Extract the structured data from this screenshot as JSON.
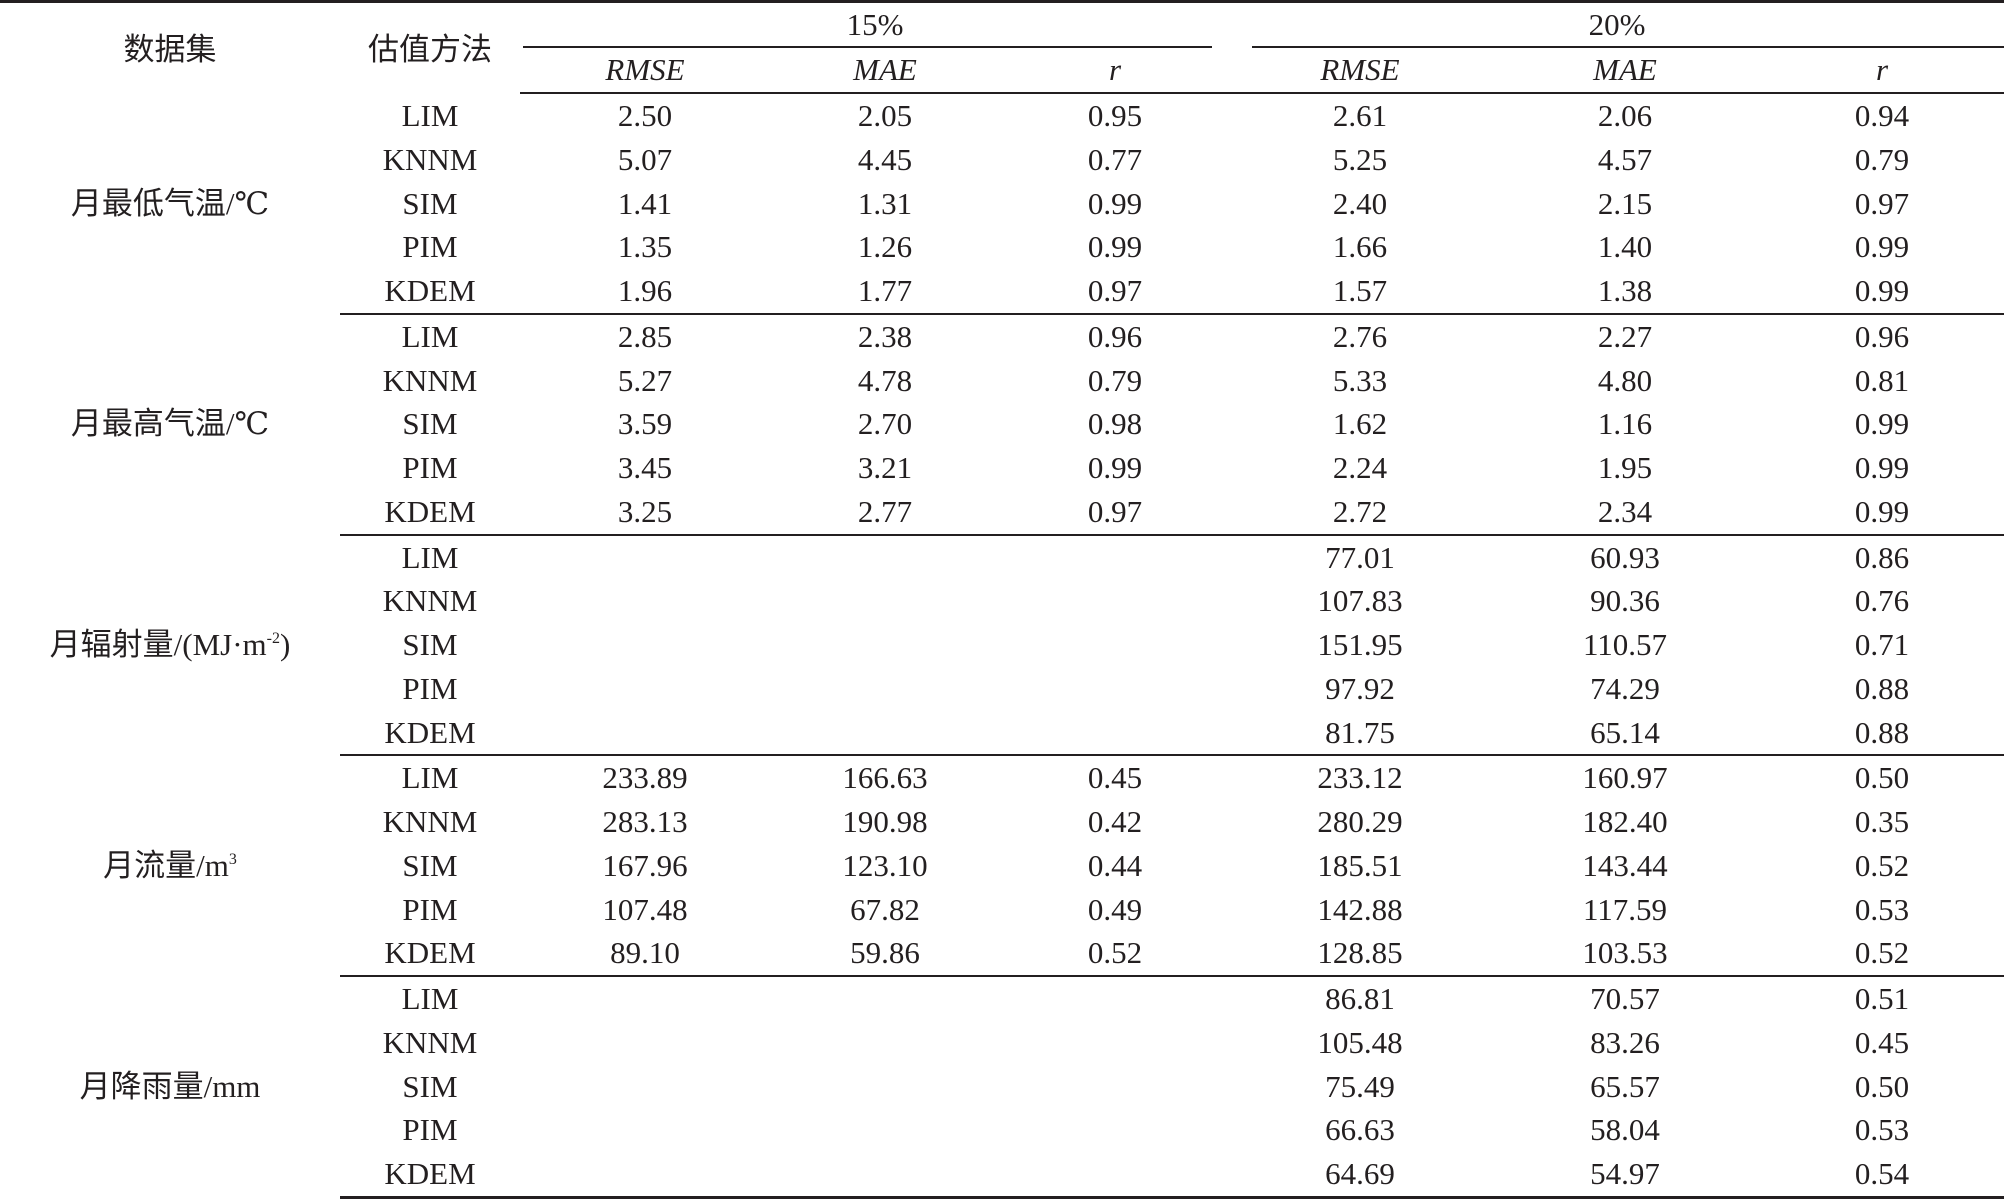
{
  "header": {
    "dataset": "数据集",
    "method": "估值方法",
    "groups": [
      "15%",
      "20%"
    ],
    "metrics": [
      "RMSE",
      "MAE",
      "r"
    ]
  },
  "datasets": [
    {
      "name": "月最低气温/℃",
      "rows": [
        {
          "method": "LIM",
          "v15": [
            "2.50",
            "2.05",
            "0.95"
          ],
          "v20": [
            "2.61",
            "2.06",
            "0.94"
          ]
        },
        {
          "method": "KNNM",
          "v15": [
            "5.07",
            "4.45",
            "0.77"
          ],
          "v20": [
            "5.25",
            "4.57",
            "0.79"
          ]
        },
        {
          "method": "SIM",
          "v15": [
            "1.41",
            "1.31",
            "0.99"
          ],
          "v20": [
            "2.40",
            "2.15",
            "0.97"
          ]
        },
        {
          "method": "PIM",
          "v15": [
            "1.35",
            "1.26",
            "0.99"
          ],
          "v20": [
            "1.66",
            "1.40",
            "0.99"
          ]
        },
        {
          "method": "KDEM",
          "v15": [
            "1.96",
            "1.77",
            "0.97"
          ],
          "v20": [
            "1.57",
            "1.38",
            "0.99"
          ]
        }
      ]
    },
    {
      "name": "月最高气温/℃",
      "rows": [
        {
          "method": "LIM",
          "v15": [
            "2.85",
            "2.38",
            "0.96"
          ],
          "v20": [
            "2.76",
            "2.27",
            "0.96"
          ]
        },
        {
          "method": "KNNM",
          "v15": [
            "5.27",
            "4.78",
            "0.79"
          ],
          "v20": [
            "5.33",
            "4.80",
            "0.81"
          ]
        },
        {
          "method": "SIM",
          "v15": [
            "3.59",
            "2.70",
            "0.98"
          ],
          "v20": [
            "1.62",
            "1.16",
            "0.99"
          ]
        },
        {
          "method": "PIM",
          "v15": [
            "3.45",
            "3.21",
            "0.99"
          ],
          "v20": [
            "2.24",
            "1.95",
            "0.99"
          ]
        },
        {
          "method": "KDEM",
          "v15": [
            "3.25",
            "2.77",
            "0.97"
          ],
          "v20": [
            "2.72",
            "2.34",
            "0.99"
          ]
        }
      ]
    },
    {
      "name": "月辐射量/(MJ·m",
      "name_sup": "-2",
      "name_tail": ")",
      "rows": [
        {
          "method": "LIM",
          "v15": [
            "",
            "",
            ""
          ],
          "v20": [
            "77.01",
            "60.93",
            "0.86"
          ]
        },
        {
          "method": "KNNM",
          "v15": [
            "",
            "",
            ""
          ],
          "v20": [
            "107.83",
            "90.36",
            "0.76"
          ]
        },
        {
          "method": "SIM",
          "v15": [
            "",
            "",
            ""
          ],
          "v20": [
            "151.95",
            "110.57",
            "0.71"
          ]
        },
        {
          "method": "PIM",
          "v15": [
            "",
            "",
            ""
          ],
          "v20": [
            "97.92",
            "74.29",
            "0.88"
          ]
        },
        {
          "method": "KDEM",
          "v15": [
            "",
            "",
            ""
          ],
          "v20": [
            "81.75",
            "65.14",
            "0.88"
          ]
        }
      ]
    },
    {
      "name": "月流量/m",
      "name_sup": "3",
      "rows": [
        {
          "method": "LIM",
          "v15": [
            "233.89",
            "166.63",
            "0.45"
          ],
          "v20": [
            "233.12",
            "160.97",
            "0.50"
          ]
        },
        {
          "method": "KNNM",
          "v15": [
            "283.13",
            "190.98",
            "0.42"
          ],
          "v20": [
            "280.29",
            "182.40",
            "0.35"
          ]
        },
        {
          "method": "SIM",
          "v15": [
            "167.96",
            "123.10",
            "0.44"
          ],
          "v20": [
            "185.51",
            "143.44",
            "0.52"
          ]
        },
        {
          "method": "PIM",
          "v15": [
            "107.48",
            "67.82",
            "0.49"
          ],
          "v20": [
            "142.88",
            "117.59",
            "0.53"
          ]
        },
        {
          "method": "KDEM",
          "v15": [
            "89.10",
            "59.86",
            "0.52"
          ],
          "v20": [
            "128.85",
            "103.53",
            "0.52"
          ]
        }
      ]
    },
    {
      "name": "月降雨量/mm",
      "rows": [
        {
          "method": "LIM",
          "v15": [
            "",
            "",
            ""
          ],
          "v20": [
            "86.81",
            "70.57",
            "0.51"
          ]
        },
        {
          "method": "KNNM",
          "v15": [
            "",
            "",
            ""
          ],
          "v20": [
            "105.48",
            "83.26",
            "0.45"
          ]
        },
        {
          "method": "SIM",
          "v15": [
            "",
            "",
            ""
          ],
          "v20": [
            "75.49",
            "65.57",
            "0.50"
          ]
        },
        {
          "method": "PIM",
          "v15": [
            "",
            "",
            ""
          ],
          "v20": [
            "66.63",
            "58.04",
            "0.53"
          ]
        },
        {
          "method": "KDEM",
          "v15": [
            "",
            "",
            ""
          ],
          "v20": [
            "64.69",
            "54.97",
            "0.54"
          ]
        }
      ]
    }
  ]
}
